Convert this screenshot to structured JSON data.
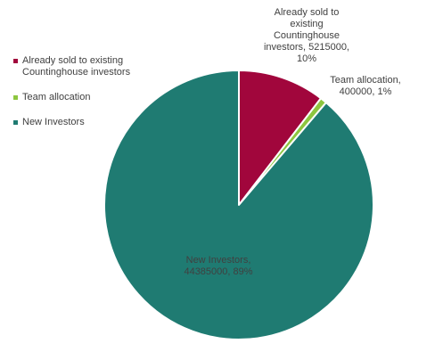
{
  "chart_data": {
    "type": "pie",
    "title": "",
    "series": [
      {
        "name": "",
        "labels": [
          "Already sold to existing Countinghouse investors",
          "Team allocation",
          "New Investors"
        ],
        "values": [
          5215000,
          400000,
          44385000
        ],
        "percent_labels": [
          "10%",
          "1%",
          "89%"
        ]
      }
    ],
    "colors": [
      "#A1063C",
      "#8DC63F",
      "#1F7B72"
    ],
    "data_labels": [
      "Already sold to existing Countinghouse investors, 5215000, 10%",
      "Team allocation, 400000, 1%",
      "New Investors, 44385000, 89%"
    ],
    "legend": {
      "position": "left",
      "entries": [
        "Already sold to existing Countinghouse investors",
        "Team allocation",
        "New Investors"
      ]
    },
    "data_label_colors": [
      "#404040",
      "#404040",
      "#404040"
    ]
  }
}
